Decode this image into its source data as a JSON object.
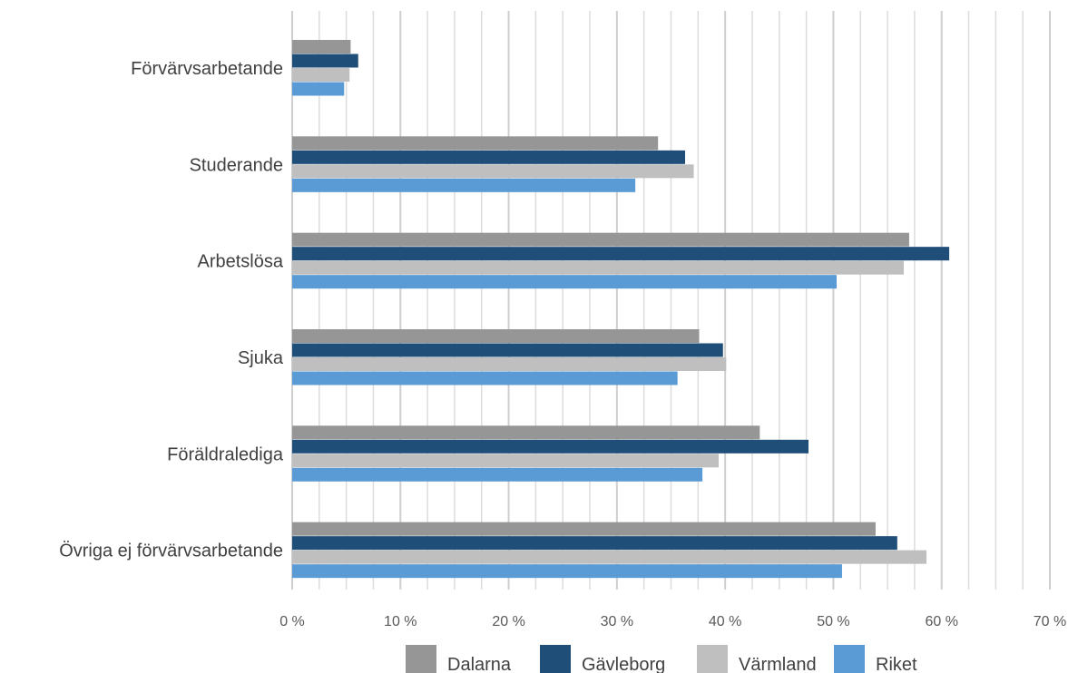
{
  "chart_data": {
    "type": "bar",
    "orientation": "horizontal",
    "categories": [
      "Förvärvsarbetande",
      "Studerande",
      "Arbetslösa",
      "Sjuka",
      "Föräldralediga",
      "Övriga ej förvärvsarbetande"
    ],
    "series": [
      {
        "name": "Dalarna",
        "color": "#969696",
        "values": [
          5.4,
          33.8,
          57.0,
          37.6,
          43.2,
          53.9
        ]
      },
      {
        "name": "Gävleborg",
        "color": "#1f4e79",
        "values": [
          6.1,
          36.3,
          60.7,
          39.8,
          47.7,
          55.9
        ]
      },
      {
        "name": "Värmland",
        "color": "#bfbfbf",
        "values": [
          5.3,
          37.1,
          56.5,
          40.1,
          39.4,
          58.6
        ]
      },
      {
        "name": "Riket",
        "color": "#5b9bd5",
        "values": [
          4.8,
          31.7,
          50.3,
          35.6,
          37.9,
          50.8
        ]
      }
    ],
    "xlim": [
      0,
      70
    ],
    "x_ticks": [
      "0 %",
      "10 %",
      "20 %",
      "30 %",
      "40 %",
      "50 %",
      "60 %",
      "70 %"
    ],
    "grid": true,
    "legend_position": "bottom",
    "title": "",
    "xlabel": "",
    "ylabel": ""
  }
}
